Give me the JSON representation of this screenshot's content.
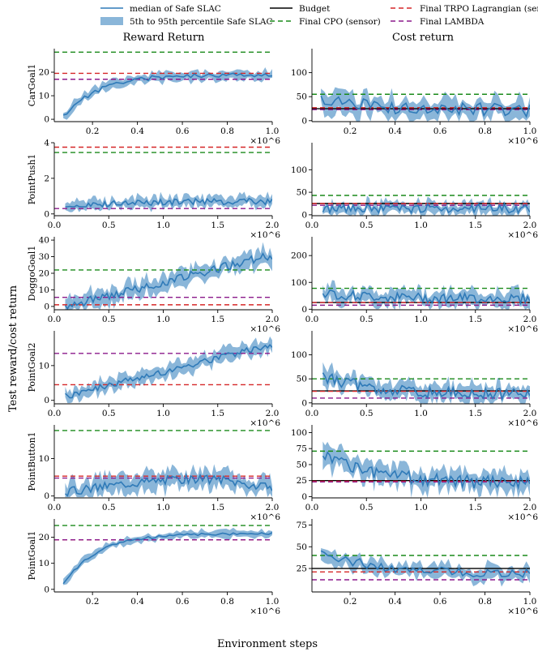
{
  "legend": {
    "entries": [
      {
        "label": "median of Safe SLAC",
        "kind": "line",
        "color": "#2f7ab8",
        "dash": ""
      },
      {
        "label": "5th to 95th percentile Safe SLAC",
        "kind": "band",
        "color": "#2f7ab8",
        "dash": ""
      },
      {
        "label": "Budget",
        "kind": "line",
        "color": "#000000",
        "dash": ""
      },
      {
        "label": "Final CPO (sensor)",
        "kind": "line",
        "color": "#1a8a1a",
        "dash": "6,4"
      },
      {
        "label": "Final TRPO Lagrangian (sensor)",
        "kind": "line",
        "color": "#d62728",
        "dash": "6,4"
      },
      {
        "label": "Final LAMBDA",
        "kind": "line",
        "color": "#8b1a8b",
        "dash": "6,4"
      }
    ]
  },
  "column_titles": [
    "Reward Return",
    "Cost return"
  ],
  "ylabel": "Test reward/cost return",
  "xlabel": "Environment steps",
  "x_multiplier": "×10^6",
  "colors": {
    "median": "#2f7ab8",
    "band": "#8ab6d9",
    "budget": "#000000",
    "cpo": "#1a8a1a",
    "trpo": "#d62728",
    "lambda": "#8b1a8b"
  },
  "chart_data": [
    {
      "type": "line",
      "env": "CarGoal1",
      "metric": "Reward Return",
      "xlim": [
        0.03,
        1.0
      ],
      "xticks": [
        0.2,
        0.4,
        0.6,
        0.8,
        1.0
      ],
      "ylim": [
        -1,
        30
      ],
      "yticks": [
        0,
        10,
        20
      ],
      "median_points": 60,
      "seed": 11,
      "median_start": 1,
      "median_end": 19,
      "curve": "sat",
      "noise": 1.0,
      "band": 2,
      "x_start": 0.07,
      "x_end": 1.0,
      "references": {
        "cpo": 28.5,
        "trpo": 19.5,
        "lambda": 17
      }
    },
    {
      "type": "line",
      "env": "CarGoal1",
      "metric": "Cost return",
      "xlim": [
        0.03,
        1.0
      ],
      "xticks": [
        0.2,
        0.4,
        0.6,
        0.8,
        1.0
      ],
      "ylim": [
        -2,
        150
      ],
      "yticks": [
        0,
        50,
        100
      ],
      "median_points": 60,
      "seed": 12,
      "median_start": 45,
      "median_end": 22,
      "curve": "decay",
      "noise": 14,
      "band": 22,
      "x_start": 0.07,
      "x_end": 1.0,
      "references": {
        "cpo": 55,
        "budget": 25,
        "trpo": 27,
        "lambda": 23
      }
    },
    {
      "type": "line",
      "env": "PointPush1",
      "metric": "Reward Return",
      "xlim": [
        0.0,
        2.0
      ],
      "xticks": [
        0.0,
        0.5,
        1.0,
        1.5,
        2.0
      ],
      "ylim": [
        -0.1,
        4
      ],
      "yticks": [
        0,
        2,
        4
      ],
      "median_points": 90,
      "seed": 21,
      "median_start": 0.2,
      "median_end": 0.7,
      "curve": "sat",
      "noise": 0.18,
      "band": 0.3,
      "x_start": 0.1,
      "x_end": 2.0,
      "references": {
        "trpo": 3.75,
        "cpo": 3.45,
        "lambda": 0.3
      }
    },
    {
      "type": "line",
      "env": "PointPush1",
      "metric": "Cost return",
      "xlim": [
        0.0,
        2.0
      ],
      "xticks": [
        0.0,
        0.5,
        1.0,
        1.5,
        2.0
      ],
      "ylim": [
        -2,
        160
      ],
      "yticks": [
        0,
        50,
        100
      ],
      "median_points": 90,
      "seed": 22,
      "median_start": 14,
      "median_end": 14,
      "curve": "sat",
      "noise": 10,
      "band": 14,
      "x_start": 0.1,
      "x_end": 2.0,
      "references": {
        "cpo": 43,
        "budget": 25,
        "trpo": 25,
        "lambda": 21
      }
    },
    {
      "type": "line",
      "env": "DoggoGoal1",
      "metric": "Reward Return",
      "xlim": [
        0.0,
        2.0
      ],
      "xticks": [
        0.0,
        0.5,
        1.0,
        1.5,
        2.0
      ],
      "ylim": [
        -2,
        42
      ],
      "yticks": [
        0,
        10,
        20,
        30,
        40
      ],
      "median_points": 90,
      "seed": 31,
      "median_start": 0,
      "median_end": 31,
      "curve": "lin",
      "noise": 2.5,
      "band": 5,
      "x_start": 0.1,
      "x_end": 2.0,
      "references": {
        "cpo": 22,
        "lambda": 5.5,
        "trpo": 1
      }
    },
    {
      "type": "line",
      "env": "DoggoGoal1",
      "metric": "Cost return",
      "xlim": [
        0.0,
        2.0
      ],
      "xticks": [
        0.0,
        0.5,
        1.0,
        1.5,
        2.0
      ],
      "ylim": [
        -2,
        270
      ],
      "yticks": [
        0,
        100,
        200
      ],
      "median_points": 90,
      "seed": 32,
      "median_start": 60,
      "median_end": 40,
      "curve": "decay",
      "noise": 18,
      "band": 30,
      "x_start": 0.1,
      "x_end": 2.0,
      "references": {
        "cpo": 78,
        "budget": 25,
        "trpo": 25,
        "lambda": 15
      }
    },
    {
      "type": "line",
      "env": "PointGoal2",
      "metric": "Reward Return",
      "xlim": [
        0.0,
        2.0
      ],
      "xticks": [
        0.0,
        0.5,
        1.0,
        1.5,
        2.0
      ],
      "ylim": [
        -1,
        20
      ],
      "yticks": [
        0,
        10
      ],
      "median_points": 90,
      "seed": 41,
      "median_start": 1,
      "median_end": 16,
      "curve": "lin",
      "noise": 1.0,
      "band": 2,
      "x_start": 0.1,
      "x_end": 2.0,
      "references": {
        "lambda": 13.5,
        "trpo": 4.5
      }
    },
    {
      "type": "line",
      "env": "PointGoal2",
      "metric": "Cost return",
      "xlim": [
        0.0,
        2.0
      ],
      "xticks": [
        0.0,
        0.5,
        1.0,
        1.5,
        2.0
      ],
      "ylim": [
        -2,
        150
      ],
      "yticks": [
        0,
        50,
        100
      ],
      "median_points": 90,
      "seed": 42,
      "median_start": 55,
      "median_end": 18,
      "curve": "decay",
      "noise": 12,
      "band": 18,
      "x_start": 0.1,
      "x_end": 2.0,
      "references": {
        "cpo": 50,
        "budget": 25,
        "trpo": 24,
        "lambda": 10
      }
    },
    {
      "type": "line",
      "env": "PointButton1",
      "metric": "Reward Return",
      "xlim": [
        0.0,
        2.0
      ],
      "xticks": [
        0.0,
        0.5,
        1.0,
        1.5,
        2.0
      ],
      "ylim": [
        -0.5,
        19
      ],
      "yticks": [
        0,
        10
      ],
      "median_points": 90,
      "seed": 51,
      "median_start": 1,
      "median_end": 2,
      "curve": "hump",
      "noise": 1.2,
      "band": 2.5,
      "x_start": 0.1,
      "x_end": 2.0,
      "references": {
        "cpo": 17.5,
        "trpo": 5.3,
        "lambda": 4.8
      }
    },
    {
      "type": "line",
      "env": "PointButton1",
      "metric": "Cost return",
      "xlim": [
        0.0,
        2.0
      ],
      "xticks": [
        0.0,
        0.5,
        1.0,
        1.5,
        2.0
      ],
      "ylim": [
        -2,
        112
      ],
      "yticks": [
        0,
        25,
        50,
        75,
        100
      ],
      "median_points": 90,
      "seed": 52,
      "median_start": 70,
      "median_end": 20,
      "curve": "decay",
      "noise": 10,
      "band": 16,
      "x_start": 0.1,
      "x_end": 2.0,
      "references": {
        "cpo": 71,
        "budget": 25,
        "trpo": 24,
        "lambda": 23
      }
    },
    {
      "type": "line",
      "env": "PointGoal1",
      "metric": "Reward Return",
      "xlim": [
        0.03,
        1.0
      ],
      "xticks": [
        0.2,
        0.4,
        0.6,
        0.8,
        1.0
      ],
      "ylim": [
        -1,
        27
      ],
      "yticks": [
        0,
        10,
        20
      ],
      "median_points": 60,
      "seed": 61,
      "median_start": 2,
      "median_end": 21.5,
      "curve": "sat",
      "noise": 0.5,
      "band": 1.4,
      "x_start": 0.07,
      "x_end": 1.0,
      "references": {
        "cpo": 24.5,
        "trpo": 19,
        "lambda": 19
      }
    },
    {
      "type": "line",
      "env": "PointGoal1",
      "metric": "Cost return",
      "xlim": [
        0.03,
        1.0
      ],
      "xticks": [
        0.2,
        0.4,
        0.6,
        0.8,
        1.0
      ],
      "ylim": [
        -2,
        82
      ],
      "yticks": [
        25,
        50,
        75
      ],
      "median_points": 60,
      "seed": 62,
      "median_start": 45,
      "median_end": 19,
      "curve": "decay",
      "noise": 5,
      "band": 8,
      "x_start": 0.07,
      "x_end": 1.0,
      "references": {
        "cpo": 40,
        "budget": 25,
        "trpo": 21,
        "lambda": 12
      }
    }
  ]
}
